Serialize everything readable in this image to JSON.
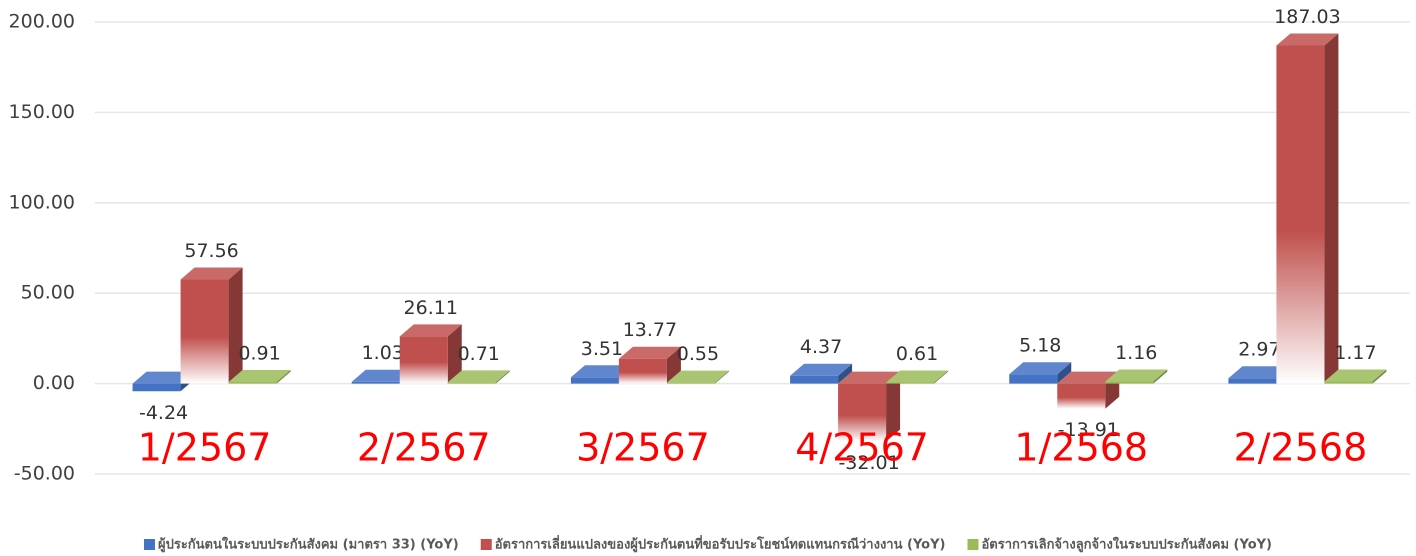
{
  "chart_data": {
    "type": "bar3d",
    "categories": [
      "1/2567",
      "2/2567",
      "3/2567",
      "4/2567",
      "1/2568",
      "2/2568"
    ],
    "series": [
      {
        "name": "ผู้ประกันตนในระบบประกันสังคม (มาตรา 33) (YoY)",
        "color": "#4472c4",
        "values": [
          -4.24,
          1.03,
          3.51,
          4.37,
          5.18,
          2.97
        ]
      },
      {
        "name": "อัตราการเลี่ยนแปลงของผู้ประกันตนที่ขอรับประโยชน์ทดแทนกรณีว่างงาน (YoY)",
        "color": "#c0504d",
        "values": [
          57.56,
          26.11,
          13.77,
          -32.01,
          -13.91,
          187.03
        ]
      },
      {
        "name": "อัตราการเลิกจ้างลูกจ้างในระบบประกันสังคม (YoY)",
        "color": "#9bbb59",
        "values": [
          0.91,
          0.71,
          0.55,
          0.61,
          1.16,
          1.17
        ]
      }
    ],
    "ylim": [
      -50,
      200
    ],
    "yticks": [
      {
        "value": -50,
        "label": "-50.00"
      },
      {
        "value": 0,
        "label": "0.00"
      },
      {
        "value": 50,
        "label": "50.00"
      },
      {
        "value": 100,
        "label": "100.00"
      },
      {
        "value": 150,
        "label": "150.00"
      },
      {
        "value": 200,
        "label": "200.00"
      }
    ],
    "grid": true
  }
}
